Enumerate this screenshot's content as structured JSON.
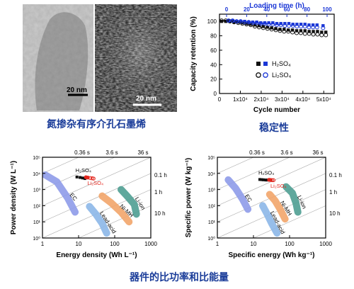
{
  "captions": {
    "top_left": "氮掺杂有序介孔石墨烯",
    "top_right": "稳定性",
    "bottom": "器件的比功率和比能量"
  },
  "images": {
    "scale_bar_left": "20 nm",
    "scale_bar_right": "20 nm"
  },
  "chart_data": [
    {
      "type": "scatter",
      "xlabel": "Cycle number",
      "ylabel": "Capacity retention (%)",
      "top_axis_label": "Loading time (h)",
      "x_ticks": [
        "0",
        "1x10⁴",
        "2x10⁴",
        "3x10⁴",
        "4x10⁴",
        "5x10⁴"
      ],
      "y_ticks": [
        "0",
        "20",
        "40",
        "60",
        "80",
        "100"
      ],
      "top_ticks": [
        "0",
        "20",
        "40",
        "60",
        "80",
        "100"
      ],
      "xlim": [
        0,
        55000
      ],
      "ylim": [
        0,
        110
      ],
      "legend": [
        "H₂SO₄",
        "Li₂SO₄"
      ],
      "colors": {
        "cycle_series": "#111111",
        "loading_series": "#1a36d6"
      },
      "series": [
        {
          "name": "H₂SO₄",
          "marker": "filled-square",
          "points": [
            [
              1000,
              100
            ],
            [
              3000,
              100
            ],
            [
              5000,
              100
            ],
            [
              7000,
              99
            ],
            [
              9000,
              99
            ],
            [
              11000,
              98
            ],
            [
              13000,
              97
            ],
            [
              15000,
              96
            ],
            [
              17000,
              95
            ],
            [
              19000,
              94
            ],
            [
              21000,
              93
            ],
            [
              23000,
              92
            ],
            [
              25000,
              91
            ],
            [
              27000,
              90
            ],
            [
              29000,
              89
            ],
            [
              31000,
              89
            ],
            [
              33000,
              88
            ],
            [
              35000,
              88
            ],
            [
              37000,
              87
            ],
            [
              39000,
              87
            ],
            [
              41000,
              87
            ],
            [
              43000,
              86
            ],
            [
              45000,
              86
            ],
            [
              47000,
              86
            ],
            [
              49000,
              85
            ],
            [
              51000,
              85
            ]
          ],
          "loading_points": [
            [
              2,
              101
            ],
            [
              6,
              101
            ],
            [
              10,
              100
            ],
            [
              14,
              100
            ],
            [
              18,
              100
            ],
            [
              22,
              99
            ],
            [
              26,
              99
            ],
            [
              30,
              99
            ],
            [
              34,
              98
            ],
            [
              38,
              98
            ],
            [
              42,
              98
            ],
            [
              46,
              98
            ],
            [
              50,
              97
            ],
            [
              54,
              97
            ],
            [
              58,
              97
            ],
            [
              62,
              97
            ],
            [
              66,
              96
            ],
            [
              70,
              96
            ],
            [
              74,
              96
            ],
            [
              78,
              96
            ],
            [
              82,
              95
            ],
            [
              86,
              95
            ],
            [
              90,
              95
            ],
            [
              96,
              94
            ]
          ]
        },
        {
          "name": "Li₂SO₄",
          "marker": "open-circle",
          "points": [
            [
              1000,
              101
            ],
            [
              3000,
              101
            ],
            [
              5000,
              100
            ],
            [
              7000,
              99
            ],
            [
              9000,
              98
            ],
            [
              11000,
              97
            ],
            [
              13000,
              96
            ],
            [
              15000,
              95
            ],
            [
              17000,
              93
            ],
            [
              19000,
              92
            ],
            [
              21000,
              91
            ],
            [
              23000,
              90
            ],
            [
              25000,
              89
            ],
            [
              27000,
              88
            ],
            [
              29000,
              87
            ],
            [
              31000,
              86
            ],
            [
              33000,
              86
            ],
            [
              35000,
              85
            ],
            [
              37000,
              84
            ],
            [
              39000,
              84
            ],
            [
              41000,
              83
            ],
            [
              43000,
              83
            ],
            [
              45000,
              82
            ],
            [
              47000,
              82
            ],
            [
              49000,
              81
            ],
            [
              51000,
              81
            ]
          ],
          "loading_points": [
            [
              2,
              101
            ],
            [
              6,
              101
            ],
            [
              10,
              100
            ],
            [
              14,
              100
            ],
            [
              18,
              99
            ],
            [
              22,
              99
            ],
            [
              26,
              98
            ],
            [
              30,
              98
            ],
            [
              34,
              97
            ],
            [
              38,
              97
            ],
            [
              42,
              96
            ],
            [
              46,
              96
            ],
            [
              50,
              95
            ],
            [
              54,
              95
            ],
            [
              58,
              94
            ],
            [
              62,
              94
            ],
            [
              66,
              94
            ],
            [
              70,
              93
            ],
            [
              74,
              93
            ],
            [
              78,
              93
            ],
            [
              82,
              92
            ],
            [
              86,
              92
            ],
            [
              90,
              92
            ],
            [
              96,
              91
            ]
          ]
        }
      ]
    },
    {
      "type": "scatter",
      "subtype": "ragone",
      "xlabel": "Energy density (Wh L⁻¹)",
      "ylabel": "Power density (W L⁻¹)",
      "x_scale": "log",
      "y_scale": "log",
      "xlim": [
        1,
        1000
      ],
      "ylim": [
        1,
        100000
      ],
      "x_ticks": [
        "1",
        "10",
        "100",
        "1000"
      ],
      "y_ticks": [
        "10⁰",
        "10¹",
        "10²",
        "10³",
        "10⁴",
        "10⁵"
      ],
      "time_lines": [
        "0.36 s",
        "3.6 s",
        "36 s",
        "0.1 h",
        "1 h",
        "10 h"
      ],
      "regions": [
        {
          "name": "EC",
          "color": "#8e9be9",
          "points": [
            [
              1.2,
              8000
            ],
            [
              2.5,
              3000
            ],
            [
              5,
              300
            ],
            [
              8,
              40
            ]
          ]
        },
        {
          "name": "Lead-acid",
          "color": "#8cb7e8",
          "points": [
            [
              20,
              90
            ],
            [
              30,
              30
            ],
            [
              45,
              8
            ],
            [
              60,
              2
            ]
          ]
        },
        {
          "name": "Ni-MH",
          "color": "#f2a56a",
          "points": [
            [
              45,
              400
            ],
            [
              80,
              150
            ],
            [
              150,
              40
            ],
            [
              250,
              10
            ]
          ]
        },
        {
          "name": "Li-ion",
          "color": "#4f9f92",
          "points": [
            [
              150,
              1000
            ],
            [
              220,
              400
            ],
            [
              350,
              120
            ],
            [
              400,
              30
            ]
          ]
        }
      ],
      "series": [
        {
          "name": "H₂SO₄",
          "color": "#111111",
          "points": [
            [
              9,
              6000
            ],
            [
              11,
              5600
            ],
            [
              13,
              5200
            ],
            [
              15,
              4800
            ]
          ]
        },
        {
          "name": "Li₂SO₄",
          "color": "#e3261d",
          "points": [
            [
              16,
              5800
            ],
            [
              18,
              5500
            ],
            [
              21,
              5200
            ],
            [
              24,
              5000
            ],
            [
              26,
              4800
            ]
          ]
        }
      ]
    },
    {
      "type": "scatter",
      "subtype": "ragone",
      "xlabel": "Specific energy (Wh kg⁻¹)",
      "ylabel": "Specific power (W kg⁻¹)",
      "x_scale": "log",
      "y_scale": "log",
      "xlim": [
        1,
        1000
      ],
      "ylim": [
        1,
        100000
      ],
      "x_ticks": [
        "1",
        "10",
        "100",
        "1000"
      ],
      "y_ticks": [
        "10⁰",
        "10¹",
        "10²",
        "10³",
        "10⁴",
        "10⁵"
      ],
      "time_lines": [
        "0.36 s",
        "3.6 s",
        "36 s",
        "0.1 h",
        "1 h",
        "10 h"
      ],
      "regions": [
        {
          "name": "EC",
          "color": "#8e9be9",
          "points": [
            [
              2,
              4000
            ],
            [
              3.2,
              1200
            ],
            [
              5,
              250
            ],
            [
              7,
              60
            ]
          ]
        },
        {
          "name": "Lead-acid",
          "color": "#8cb7e8",
          "points": [
            [
              18,
              100
            ],
            [
              24,
              30
            ],
            [
              32,
              8
            ],
            [
              45,
              2
            ]
          ]
        },
        {
          "name": "Ni-MH",
          "color": "#f2a56a",
          "points": [
            [
              28,
              500
            ],
            [
              40,
              200
            ],
            [
              55,
              60
            ],
            [
              75,
              15
            ]
          ]
        },
        {
          "name": "Li-ion",
          "color": "#4f9f92",
          "points": [
            [
              80,
              1500
            ],
            [
              120,
              600
            ],
            [
              150,
              150
            ],
            [
              170,
              40
            ]
          ]
        }
      ],
      "series": [
        {
          "name": "H₂SO₄",
          "color": "#111111",
          "points": [
            [
              15,
              4200
            ],
            [
              17,
              4100
            ],
            [
              19,
              4000
            ],
            [
              22,
              3900
            ],
            [
              24,
              3900
            ]
          ]
        },
        {
          "name": "Li₂SO₄",
          "color": "#e3261d",
          "points": [
            [
              27,
              4000
            ],
            [
              30,
              3900
            ],
            [
              33,
              3800
            ],
            [
              36,
              3800
            ]
          ]
        }
      ]
    }
  ]
}
